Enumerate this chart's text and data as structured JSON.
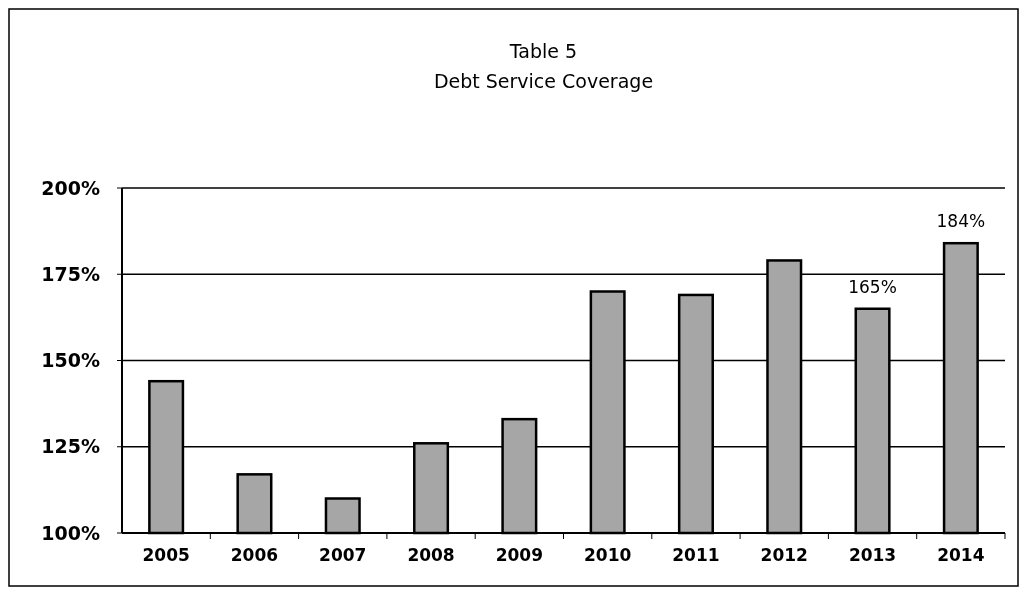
{
  "chart_data": {
    "type": "bar",
    "title": "Table 5\nDebt Service Coverage",
    "categories": [
      "2005",
      "2006",
      "2007",
      "2008",
      "2009",
      "2010",
      "2011",
      "2012",
      "2013",
      "2014"
    ],
    "values": [
      144,
      117,
      110,
      126,
      133,
      170,
      169,
      179,
      165,
      184
    ],
    "value_labels": [
      null,
      null,
      null,
      null,
      null,
      null,
      null,
      null,
      "165%",
      "184%"
    ],
    "color": "#a6a6a6",
    "ylim": [
      100,
      200
    ],
    "yticks": [
      {
        "value": 100,
        "label": "100%"
      },
      {
        "value": 125,
        "label": "125%"
      },
      {
        "value": 150,
        "label": "150%"
      },
      {
        "value": 175,
        "label": "175%"
      },
      {
        "value": 200,
        "label": "200%"
      }
    ],
    "grid": "y"
  }
}
